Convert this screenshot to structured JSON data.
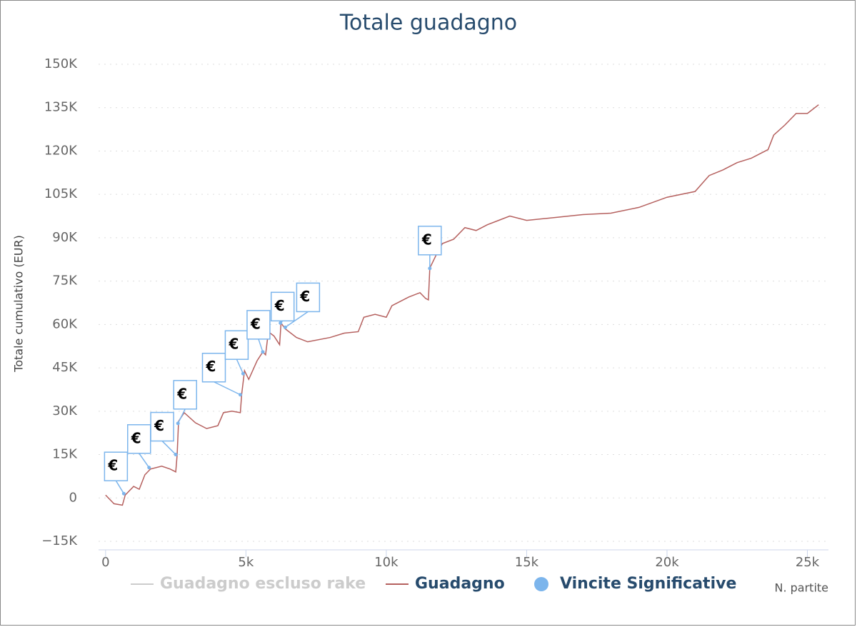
{
  "chart_data": {
    "type": "line",
    "title": "Totale guadagno",
    "y_axis_label": "Totale cumulativo (EUR)",
    "x_axis_label": "N. partite",
    "xlim": [
      -250,
      25750
    ],
    "xticks": [
      0,
      {
        "value": 5000,
        "label": "5k"
      },
      {
        "value": 10000,
        "label": "10k"
      },
      {
        "value": 15000,
        "label": "15k"
      },
      {
        "value": 20000,
        "label": "20k"
      },
      {
        "value": 25000,
        "label": "25k"
      }
    ],
    "ylim": [
      -15000,
      150000
    ],
    "yticks": [
      {
        "value": -15000,
        "label": "−15K"
      },
      0,
      {
        "value": 15000,
        "label": "15K"
      },
      {
        "value": 30000,
        "label": "30K"
      },
      {
        "value": 45000,
        "label": "45K"
      },
      {
        "value": 60000,
        "label": "60K"
      },
      {
        "value": 75000,
        "label": "75K"
      },
      {
        "value": 90000,
        "label": "90K"
      },
      {
        "value": 105000,
        "label": "105K"
      },
      {
        "value": 120000,
        "label": "120K"
      },
      {
        "value": 135000,
        "label": "135K"
      },
      {
        "value": 150000,
        "label": "150K"
      }
    ],
    "grid": true,
    "series": [
      {
        "name": "Guadagno escluso rake",
        "color": "#cccccc",
        "visible": false
      },
      {
        "name": "Guadagno",
        "color": "#b5605e",
        "x": [
          0,
          300,
          600,
          700,
          1000,
          1200,
          1400,
          1600,
          2000,
          2300,
          2500,
          2550,
          2600,
          2800,
          3200,
          3600,
          4000,
          4200,
          4500,
          4800,
          4850,
          4950,
          5100,
          5400,
          5600,
          5700,
          5800,
          6000,
          6200,
          6250,
          6400,
          6800,
          7200,
          8000,
          8500,
          9000,
          9200,
          9600,
          10000,
          10200,
          10800,
          11200,
          11400,
          11500,
          11550,
          11800,
          12000,
          12400,
          12800,
          13200,
          13600,
          14000,
          14400,
          15000,
          16000,
          17000,
          18000,
          19000,
          20000,
          21000,
          21500,
          22000,
          22500,
          23000,
          23600,
          23800,
          24200,
          24600,
          25000,
          25400
        ],
        "values": [
          1000,
          -2000,
          -2500,
          1000,
          4000,
          3000,
          8000,
          10000,
          11000,
          10000,
          9000,
          15000,
          26500,
          29500,
          26000,
          24000,
          25000,
          29500,
          30000,
          29500,
          36000,
          44000,
          41000,
          47500,
          50500,
          49500,
          57500,
          56000,
          53000,
          60500,
          58500,
          55500,
          54000,
          55500,
          57000,
          57500,
          62500,
          63500,
          62500,
          66500,
          69500,
          71000,
          69000,
          68500,
          79500,
          84500,
          88000,
          89500,
          93500,
          92500,
          94500,
          96000,
          97500,
          96000,
          97000,
          98000,
          98500,
          100500,
          104000,
          106000,
          111500,
          113500,
          116000,
          117500,
          120500,
          125500,
          129000,
          133000,
          133000,
          136000
        ]
      },
      {
        "name": "Vincite Significative",
        "color": "#7cb5ec",
        "x": [
          650,
          1550,
          2500,
          2580,
          4800,
          4900,
          5600,
          6230,
          6400,
          11550
        ],
        "values": [
          1500,
          10500,
          15000,
          25800,
          35700,
          43000,
          50500,
          60500,
          59000,
          79400
        ],
        "flag_labels": [
          "€",
          "€",
          "€",
          "€",
          "€",
          "€",
          "€",
          "€",
          "€",
          "€"
        ]
      }
    ]
  }
}
